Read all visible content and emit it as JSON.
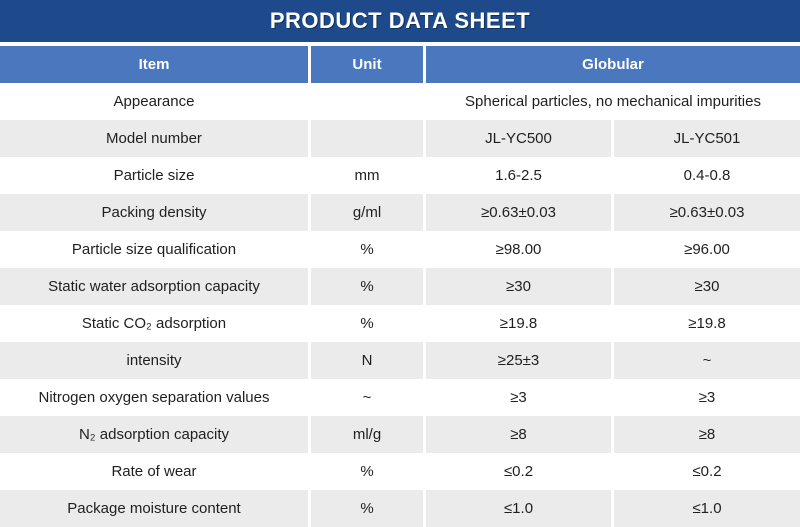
{
  "banner": {
    "title": "PRODUCT DATA SHEET"
  },
  "header": {
    "item": "Item",
    "unit": "Unit",
    "globular": "Globular"
  },
  "colors": {
    "banner_bg": "#1e4a8b",
    "header_bg": "#4a77be",
    "alt_row_bg": "#ebebeb",
    "row_bg": "#ffffff",
    "text": "#1f1f1f",
    "header_text": "#ffffff"
  },
  "rows": [
    {
      "item": "Appearance",
      "unit": "",
      "span": "Spherical particles, no mechanical impurities"
    },
    {
      "item": "Model number",
      "unit": "",
      "v1": "JL-YC500",
      "v2": "JL-YC501"
    },
    {
      "item": "Particle size",
      "unit": "mm",
      "v1": "1.6-2.5",
      "v2": "0.4-0.8"
    },
    {
      "item": "Packing density",
      "unit": "g/ml",
      "v1": "≥0.63±0.03",
      "v2": "≥0.63±0.03"
    },
    {
      "item": "Particle size qualification",
      "unit": "%",
      "v1": "≥98.00",
      "v2": "≥96.00"
    },
    {
      "item": "Static water adsorption capacity",
      "unit": "%",
      "v1": "≥30",
      "v2": "≥30"
    },
    {
      "item": "Static CO₂ adsorption",
      "unit": "%",
      "v1": "≥19.8",
      "v2": "≥19.8"
    },
    {
      "item": "intensity",
      "unit": "N",
      "v1": "≥25±3",
      "v2": "~"
    },
    {
      "item": "Nitrogen oxygen separation values",
      "unit": "~",
      "v1": "≥3",
      "v2": "≥3"
    },
    {
      "item": "N₂ adsorption capacity",
      "unit": "ml/g",
      "v1": "≥8",
      "v2": "≥8"
    },
    {
      "item": "Rate of wear",
      "unit": "%",
      "v1": "≤0.2",
      "v2": "≤0.2"
    },
    {
      "item": "Package moisture content",
      "unit": "%",
      "v1": "≤1.0",
      "v2": "≤1.0"
    }
  ]
}
